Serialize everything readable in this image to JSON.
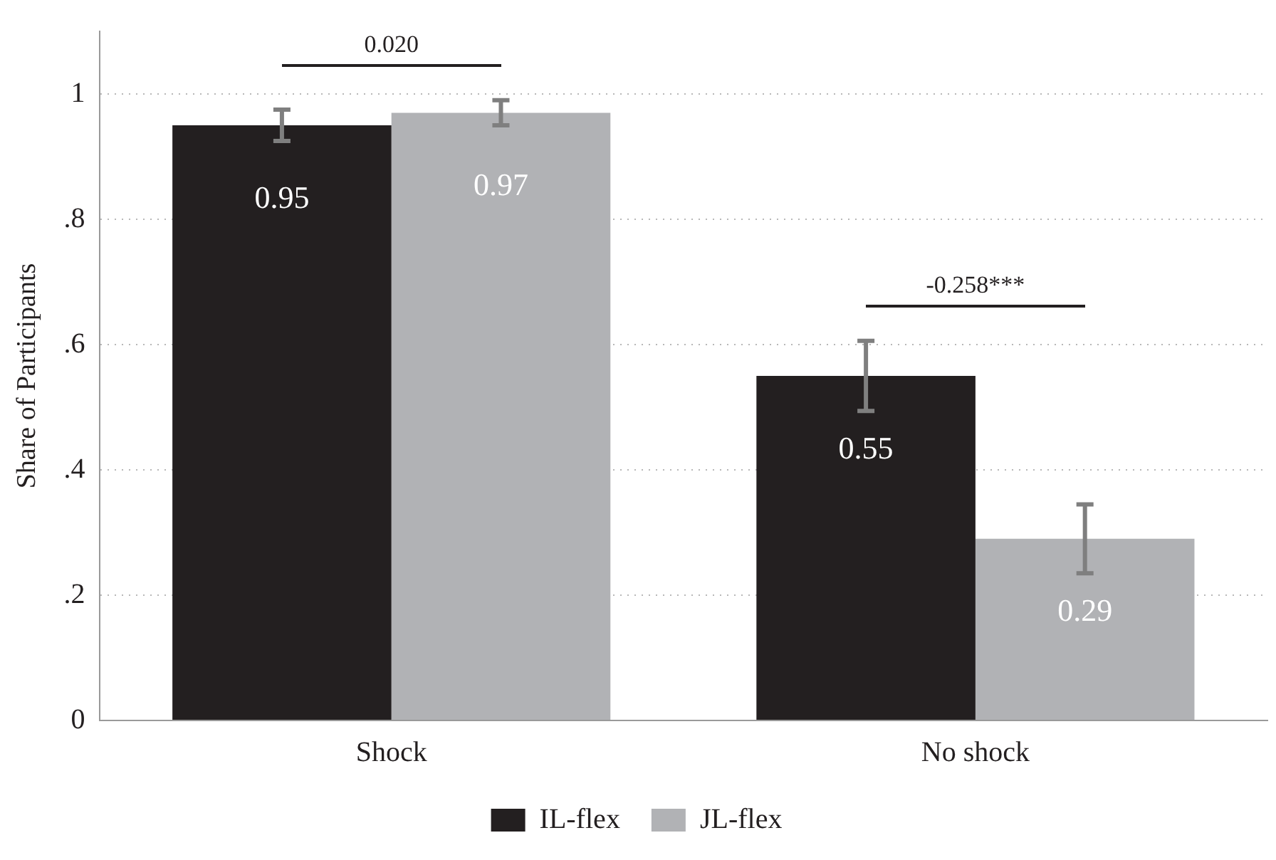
{
  "chart_data": {
    "type": "bar",
    "ylabel": "Share of Participants",
    "categories": [
      "Shock",
      "No shock"
    ],
    "series": [
      {
        "name": "IL-flex",
        "color": "#231f20",
        "values": [
          0.95,
          0.55
        ],
        "errors": [
          0.025,
          0.056
        ]
      },
      {
        "name": "JL-flex",
        "color": "#b1b2b5",
        "values": [
          0.97,
          0.29
        ],
        "errors": [
          0.02,
          0.055
        ]
      }
    ],
    "ylim": [
      0,
      1.1
    ],
    "yticks": [
      {
        "value": 0,
        "label": "0"
      },
      {
        "value": 0.2,
        "label": ".2"
      },
      {
        "value": 0.4,
        "label": ".4"
      },
      {
        "value": 0.6,
        "label": ".6"
      },
      {
        "value": 0.8,
        "label": ".8"
      },
      {
        "value": 1,
        "label": "1"
      }
    ],
    "annotations": [
      "0.020",
      "-0.258***"
    ],
    "data_labels": true,
    "grid": "y",
    "legend": "bottom"
  }
}
